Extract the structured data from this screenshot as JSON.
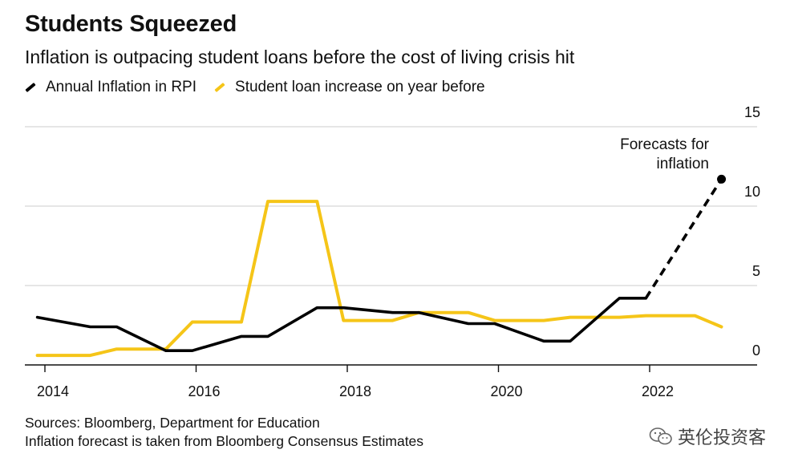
{
  "chart_data": {
    "type": "line",
    "title": "Students Squeezed",
    "subtitle": "Inflation is outpacing student loans before the cost of living crisis hit",
    "x_range": [
      2013.9,
      2023.0
    ],
    "ylim": [
      0,
      15
    ],
    "y_ticks": [
      0,
      5,
      10,
      15
    ],
    "x_ticks": [
      2014,
      2016,
      2018,
      2020,
      2022
    ],
    "grid": true,
    "legend_position": "top-left",
    "series": [
      {
        "name": "Annual Inflation in RPI",
        "color": "#000000",
        "points": [
          [
            2013.9,
            3.0
          ],
          [
            2014.6,
            2.4
          ],
          [
            2014.95,
            2.4
          ],
          [
            2015.6,
            0.9
          ],
          [
            2015.95,
            0.9
          ],
          [
            2016.6,
            1.8
          ],
          [
            2016.95,
            1.8
          ],
          [
            2017.6,
            3.6
          ],
          [
            2017.95,
            3.6
          ],
          [
            2018.6,
            3.3
          ],
          [
            2018.95,
            3.3
          ],
          [
            2019.6,
            2.6
          ],
          [
            2019.95,
            2.6
          ],
          [
            2020.6,
            1.5
          ],
          [
            2020.95,
            1.5
          ],
          [
            2021.6,
            4.2
          ],
          [
            2021.95,
            4.2
          ]
        ],
        "forecast_points": [
          [
            2021.95,
            4.2
          ],
          [
            2022.95,
            11.7
          ]
        ]
      },
      {
        "name": "Student loan increase on year before",
        "color": "#f5c518",
        "points": [
          [
            2013.9,
            0.6
          ],
          [
            2014.6,
            0.6
          ],
          [
            2014.95,
            1.0
          ],
          [
            2015.6,
            1.0
          ],
          [
            2015.95,
            2.7
          ],
          [
            2016.6,
            2.7
          ],
          [
            2016.95,
            10.3
          ],
          [
            2017.6,
            10.3
          ],
          [
            2017.95,
            2.8
          ],
          [
            2018.6,
            2.8
          ],
          [
            2018.95,
            3.3
          ],
          [
            2019.6,
            3.3
          ],
          [
            2019.95,
            2.8
          ],
          [
            2020.6,
            2.8
          ],
          [
            2020.95,
            3.0
          ],
          [
            2021.6,
            3.0
          ],
          [
            2021.95,
            3.1
          ],
          [
            2022.6,
            3.1
          ],
          [
            2022.95,
            2.4
          ]
        ]
      }
    ],
    "annotation": {
      "lines": [
        "Forecasts for",
        "inflation"
      ]
    }
  },
  "footer": {
    "sources": "Sources: Bloomberg, Department for Education",
    "note": "Inflation forecast is taken from Bloomberg Consensus Estimates"
  },
  "watermark": {
    "text": "英伦投资客",
    "icon": "wechat-icon"
  }
}
